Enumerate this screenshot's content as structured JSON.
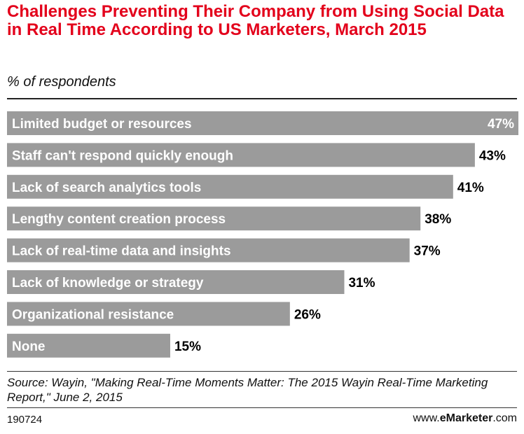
{
  "header": {
    "title": "Challenges Preventing Their Company from Using Social Data in Real Time According to US Marketers, March 2015",
    "subtitle": "% of respondents"
  },
  "colors": {
    "title": "#e3001b",
    "bar": "#9b9b9b",
    "bar_label": "#ffffff",
    "value_inside": "#ffffff",
    "value_outside": "#000000"
  },
  "chart_data": {
    "type": "bar",
    "orientation": "horizontal",
    "title": "Challenges Preventing Their Company from Using Social Data in Real Time According to US Marketers, March 2015",
    "subtitle": "% of respondents",
    "categories": [
      "Limited budget or resources",
      "Staff can't respond quickly enough",
      "Lack of search analytics tools",
      "Lengthy content creation process",
      "Lack of real-time data and insights",
      "Lack of knowledge or strategy",
      "Organizational resistance",
      "None"
    ],
    "values": [
      47,
      43,
      41,
      38,
      37,
      31,
      26,
      15
    ],
    "value_labels": [
      "47%",
      "43%",
      "41%",
      "38%",
      "37%",
      "31%",
      "26%",
      "15%"
    ],
    "unit": "%",
    "xlim": [
      0,
      47
    ],
    "grid": false,
    "legend": "none"
  },
  "footer": {
    "source": "Source: Wayin, \"Making Real-Time Moments Matter: The 2015 Wayin Real-Time Marketing Report,\" June 2, 2015",
    "chart_id": "190724",
    "brand_prefix": "www.",
    "brand_name": "eMarketer",
    "brand_suffix": ".com"
  }
}
